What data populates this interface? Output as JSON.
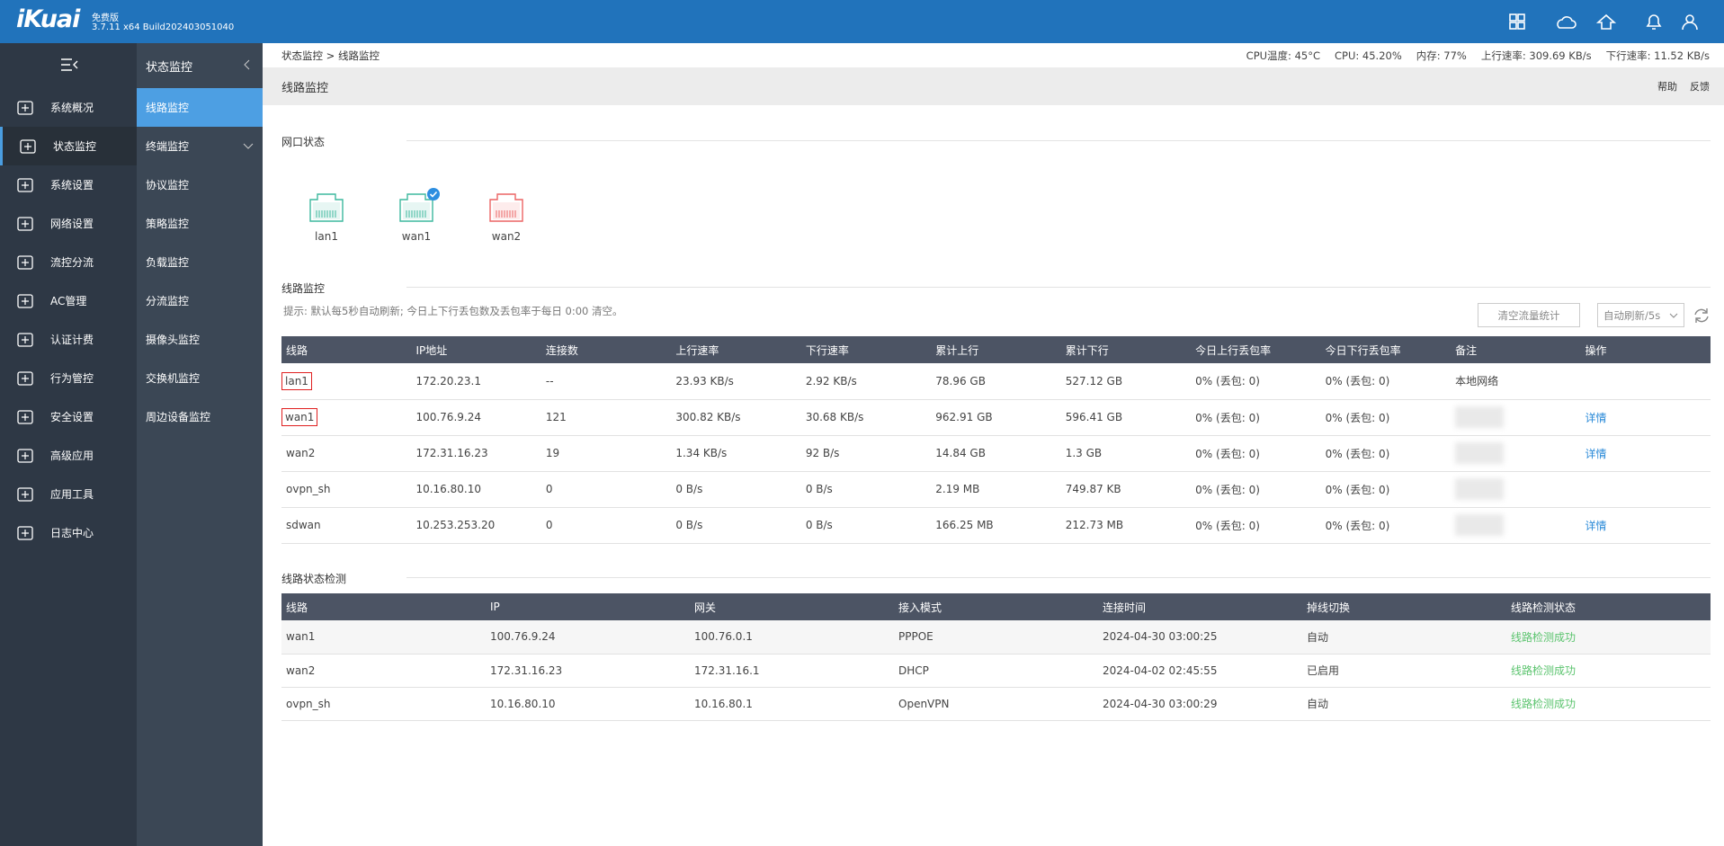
{
  "header": {
    "logo": "iKuai",
    "edition": "免费版",
    "version": "3.7.11 x64 Build202403051040"
  },
  "status": {
    "cpu_temp": "CPU温度: 45°C",
    "cpu": "CPU: 45.20%",
    "memory": "内存: 77%",
    "upload": "上行速率: 309.69 KB/s",
    "download": "下行速率: 11.52 KB/s"
  },
  "breadcrumb": "状态监控 > 线路监控",
  "sidebar": [
    "系统概况",
    "状态监控",
    "系统设置",
    "网络设置",
    "流控分流",
    "AC管理",
    "认证计费",
    "行为管控",
    "安全设置",
    "高级应用",
    "应用工具",
    "日志中心"
  ],
  "submenu": {
    "title": "状态监控",
    "items": [
      "线路监控",
      "终端监控",
      "协议监控",
      "策略监控",
      "负载监控",
      "分流监控",
      "摄像头监控",
      "交换机监控",
      "周边设备监控"
    ]
  },
  "page": {
    "title": "线路监控",
    "help": "帮助",
    "feedback": "反馈"
  },
  "ports": {
    "title": "网口状态",
    "items": [
      {
        "label": "lan1",
        "color": "#3db89e"
      },
      {
        "label": "wan1",
        "color": "#3db89e"
      },
      {
        "label": "wan2",
        "color": "#ec6464"
      }
    ]
  },
  "monitor": {
    "title": "线路监控",
    "tip": "提示: 默认每5秒自动刷新; 今日上下行丢包数及丢包率于每日 0:00 清空。",
    "clear_button": "清空流量统计",
    "refresh_select": "自动刷新/5s",
    "table": {
      "columns": [
        "线路",
        "IP地址",
        "连接数",
        "上行速率",
        "下行速率",
        "累计上行",
        "累计下行",
        "今日上行丢包率",
        "今日下行丢包率",
        "备注",
        "操作"
      ],
      "rows": [
        [
          "lan1",
          "172.20.23.1",
          "--",
          "23.93 KB/s",
          "2.92 KB/s",
          "78.96 GB",
          "527.12 GB",
          "0% (丢包: 0)",
          "0% (丢包: 0)",
          "本地网络",
          null
        ],
        [
          "wan1",
          "100.76.9.24",
          "121",
          "300.82 KB/s",
          "30.68 KB/s",
          "962.91 GB",
          "596.41 GB",
          "0% (丢包: 0)",
          "0% (丢包: 0)",
          null,
          "详情"
        ],
        [
          "wan2",
          "172.31.16.23",
          "19",
          "1.34 KB/s",
          "92 B/s",
          "14.84 GB",
          "1.3 GB",
          "0% (丢包: 0)",
          "0% (丢包: 0)",
          null,
          "详情"
        ],
        [
          "ovpn_sh",
          "10.16.80.10",
          "0",
          "0 B/s",
          "0 B/s",
          "2.19 MB",
          "749.87 KB",
          "0% (丢包: 0)",
          "0% (丢包: 0)",
          null,
          null
        ],
        [
          "sdwan",
          "10.253.253.20",
          "0",
          "0 B/s",
          "0 B/s",
          "166.25 MB",
          "212.73 MB",
          "0% (丢包: 0)",
          "0% (丢包: 0)",
          null,
          "详情"
        ]
      ]
    }
  },
  "detection": {
    "title": "线路状态检测",
    "table": {
      "columns": [
        "线路",
        "IP",
        "网关",
        "接入模式",
        "连接时间",
        "掉线切换",
        "线路检测状态"
      ],
      "rows": [
        [
          "wan1",
          "100.76.9.24",
          "100.76.0.1",
          "PPPOE",
          "2024-04-30 03:00:25",
          "自动",
          "线路检测成功"
        ],
        [
          "wan2",
          "172.31.16.23",
          "172.31.16.1",
          "DHCP",
          "2024-04-02 02:45:55",
          "已启用",
          "线路检测成功"
        ],
        [
          "ovpn_sh",
          "10.16.80.10",
          "10.16.80.1",
          "OpenVPN",
          "2024-04-30 03:00:29",
          "自动",
          "线路检测成功"
        ]
      ]
    }
  }
}
